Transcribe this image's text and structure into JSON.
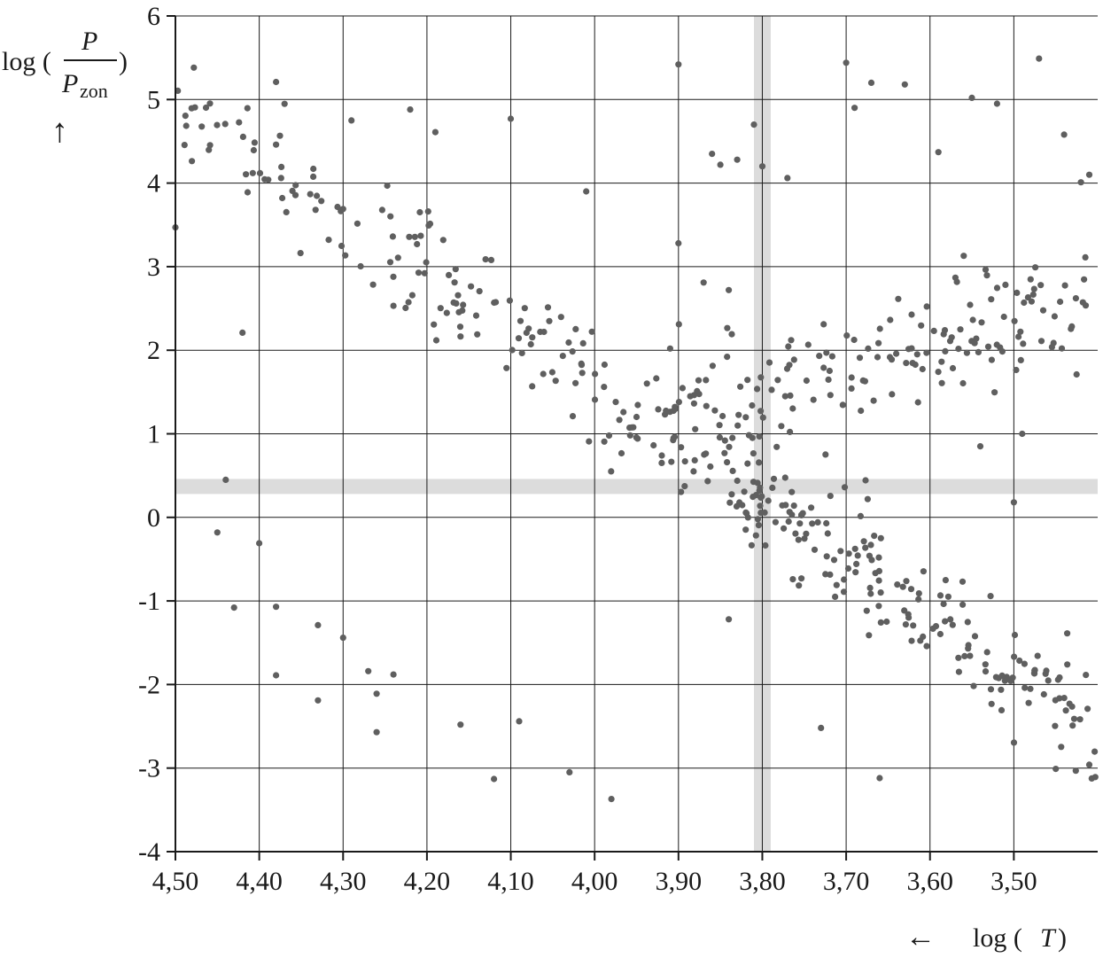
{
  "chart_data": {
    "type": "scatter",
    "title": "",
    "ylabel": {
      "prefix": "log (",
      "numerator": "P",
      "denominator": "P",
      "denominator_sub": "zon",
      "suffix": ")",
      "arrow": "↑"
    },
    "xlabel": {
      "arrow": "←",
      "text": "log (",
      "var": "T",
      "suffix": ")"
    },
    "xlim": [
      4.5,
      3.4
    ],
    "ylim": [
      -4,
      6
    ],
    "x_reversed": true,
    "grid": true,
    "x_ticks": [
      {
        "value": 4.5,
        "label": "4,50"
      },
      {
        "value": 4.4,
        "label": "4,40"
      },
      {
        "value": 4.3,
        "label": "4,30"
      },
      {
        "value": 4.2,
        "label": "4,20"
      },
      {
        "value": 4.1,
        "label": "4,10"
      },
      {
        "value": 4.0,
        "label": "4,00"
      },
      {
        "value": 3.9,
        "label": "3,90"
      },
      {
        "value": 3.8,
        "label": "3,80"
      },
      {
        "value": 3.7,
        "label": "3,70"
      },
      {
        "value": 3.6,
        "label": "3,60"
      },
      {
        "value": 3.5,
        "label": "3,50"
      }
    ],
    "y_ticks": [
      {
        "value": 6,
        "label": "6"
      },
      {
        "value": 5,
        "label": "5"
      },
      {
        "value": 4,
        "label": "4"
      },
      {
        "value": 3,
        "label": "3"
      },
      {
        "value": 2,
        "label": "2"
      },
      {
        "value": 1,
        "label": "1"
      },
      {
        "value": 0,
        "label": "0"
      },
      {
        "value": -1,
        "label": "-1"
      },
      {
        "value": -2,
        "label": "-2"
      },
      {
        "value": -3,
        "label": "-3"
      },
      {
        "value": -4,
        "label": "-4"
      }
    ],
    "highlight_bands": {
      "horizontal": {
        "y": 0.37,
        "half_width": 0.09
      },
      "vertical": {
        "x": 3.8,
        "half_width": 0.01
      },
      "color": "#dcdcdc"
    },
    "point_color": "#5f5f5f",
    "scatter": {
      "seed": 7,
      "branches": [
        {
          "x0": 4.5,
          "x1": 3.8,
          "y0": 4.9,
          "y1": 0.25,
          "n": 190,
          "spread": 0.34
        },
        {
          "x0": 3.82,
          "x1": 3.4,
          "y0": 0.35,
          "y1": -2.55,
          "n": 175,
          "spread": 0.35
        },
        {
          "x0": 3.93,
          "x1": 3.4,
          "y0": 1.2,
          "y1": 2.6,
          "n": 160,
          "spread": 0.33
        }
      ],
      "outliers": [
        [
          4.5,
          3.47
        ],
        [
          4.44,
          0.45
        ],
        [
          4.45,
          -0.18
        ],
        [
          4.43,
          -1.08
        ],
        [
          4.4,
          -0.31
        ],
        [
          4.38,
          -1.07
        ],
        [
          4.38,
          -1.89
        ],
        [
          4.33,
          -2.19
        ],
        [
          4.33,
          -1.29
        ],
        [
          4.3,
          -1.44
        ],
        [
          4.27,
          -1.84
        ],
        [
          4.26,
          -2.11
        ],
        [
          4.26,
          -2.57
        ],
        [
          4.24,
          -1.88
        ],
        [
          4.16,
          -2.48
        ],
        [
          4.12,
          -3.13
        ],
        [
          4.09,
          -2.44
        ],
        [
          4.03,
          -3.05
        ],
        [
          3.98,
          -3.37
        ],
        [
          4.38,
          5.21
        ],
        [
          4.29,
          4.75
        ],
        [
          4.22,
          4.88
        ],
        [
          4.19,
          4.61
        ],
        [
          4.1,
          4.77
        ],
        [
          4.01,
          3.9
        ],
        [
          3.9,
          5.42
        ],
        [
          3.9,
          3.28
        ],
        [
          3.86,
          4.35
        ],
        [
          3.85,
          4.22
        ],
        [
          3.83,
          4.28
        ],
        [
          3.81,
          4.7
        ],
        [
          3.8,
          4.2
        ],
        [
          3.77,
          4.06
        ],
        [
          3.7,
          5.44
        ],
        [
          3.69,
          4.9
        ],
        [
          3.67,
          5.2
        ],
        [
          3.63,
          5.18
        ],
        [
          3.59,
          4.37
        ],
        [
          3.55,
          5.02
        ],
        [
          3.52,
          4.95
        ],
        [
          3.47,
          5.49
        ],
        [
          3.44,
          4.58
        ],
        [
          3.42,
          4.01
        ],
        [
          3.41,
          4.1
        ],
        [
          3.84,
          -1.22
        ],
        [
          3.73,
          -2.52
        ],
        [
          3.66,
          -3.12
        ],
        [
          3.45,
          -3.01
        ],
        [
          3.41,
          -2.96
        ],
        [
          3.49,
          1.0
        ],
        [
          3.54,
          0.85
        ],
        [
          3.5,
          0.18
        ],
        [
          4.14,
          2.19
        ],
        [
          4.3,
          3.69
        ],
        [
          4.42,
          2.21
        ],
        [
          4.38,
          4.46
        ],
        [
          3.91,
          2.02
        ],
        [
          3.87,
          2.81
        ],
        [
          3.84,
          2.72
        ]
      ]
    }
  }
}
